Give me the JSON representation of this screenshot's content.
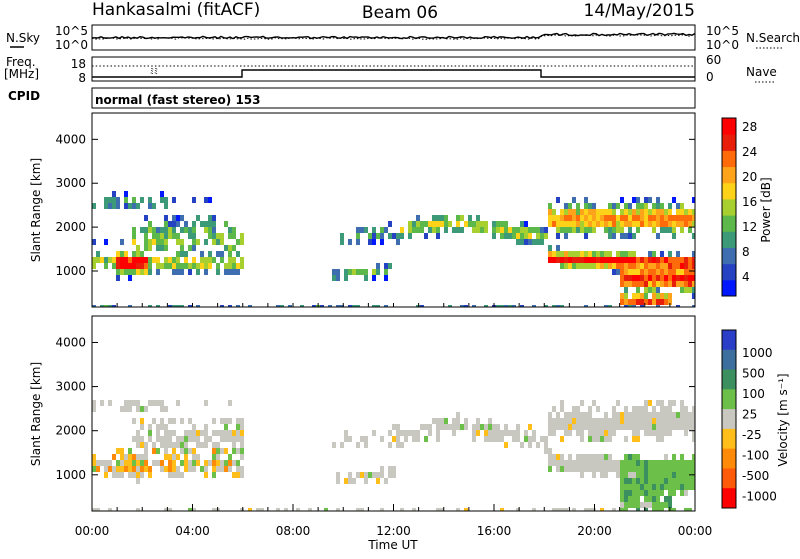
{
  "header": {
    "station": "Hankasalmi (fitACF)",
    "beam": "Beam 06",
    "date": "14/May/2015"
  },
  "noise_panel": {
    "left_label": "N.Sky",
    "right_label": "N.Search",
    "tick_top": "10^5",
    "tick_bottom": "10^0",
    "right_tick_top": "10^5",
    "right_tick_bottom": "10^0"
  },
  "freq_panel": {
    "left_label_1": "Freq.",
    "left_label_2": "[MHz]",
    "tick_top": "18",
    "tick_bottom": "8",
    "right_label": "Nave",
    "right_tick_top": "60",
    "right_tick_bottom": "0"
  },
  "cpid": {
    "label": "CPID",
    "value": "normal (fast stereo) 153"
  },
  "chart_data": [
    {
      "type": "heatmap",
      "title": "",
      "xlabel": "Time UT",
      "ylabel": "Slant Range [km]",
      "x_ticks": [
        "00:00",
        "04:00",
        "08:00",
        "12:00",
        "16:00",
        "20:00",
        "00:00"
      ],
      "y_ticks": [
        "1000",
        "2000",
        "3000",
        "4000"
      ],
      "ylim": [
        180,
        4600
      ],
      "colorbar": {
        "label": "Power [dB]",
        "ticks": [
          "4",
          "8",
          "12",
          "16",
          "20",
          "24",
          "28"
        ],
        "colors": [
          "#0018ff",
          "#2442c2",
          "#3f6eb0",
          "#3c9a78",
          "#5cb84a",
          "#a8cf30",
          "#ffd21a",
          "#ffa41a",
          "#ff6a0a",
          "#e81e0a",
          "#ff0000"
        ]
      }
    },
    {
      "type": "heatmap",
      "title": "",
      "xlabel": "Time UT",
      "ylabel": "Slant Range [km]",
      "x_ticks": [
        "00:00",
        "04:00",
        "08:00",
        "12:00",
        "16:00",
        "20:00",
        "00:00"
      ],
      "y_ticks": [
        "1000",
        "2000",
        "3000",
        "4000"
      ],
      "ylim": [
        180,
        4600
      ],
      "colorbar": {
        "label": "Velocity [m s⁻¹]",
        "ticks": [
          "1000",
          "500",
          "100",
          "25",
          "-25",
          "-100",
          "-500",
          "-1000"
        ],
        "colors": [
          "#2a3ec8",
          "#3c6e9e",
          "#3c9060",
          "#6cc04a",
          "#c8c8c0",
          "#ffbe1a",
          "#ff8a0a",
          "#ff5a0a",
          "#ff0000"
        ]
      }
    }
  ]
}
